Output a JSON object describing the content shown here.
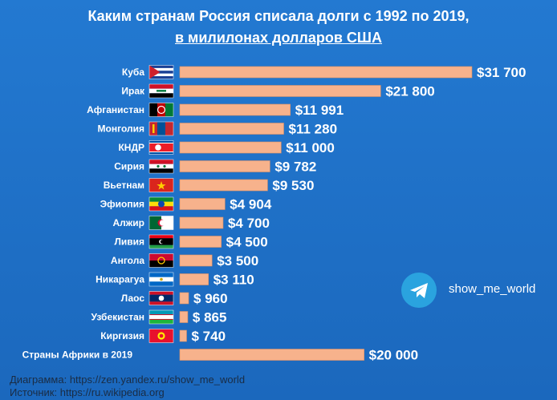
{
  "header": {
    "title_line1": "Каким странам Россия списала долги с 1992 по 2019,",
    "title_line2": "в милилонах долларов США"
  },
  "chart_data": {
    "type": "bar",
    "orientation": "horizontal",
    "categories": [
      "Куба",
      "Ирак",
      "Афганистан",
      "Монголия",
      "КНДР",
      "Сирия",
      "Вьетнам",
      "Эфиопия",
      "Алжир",
      "Ливия",
      "Ангола",
      "Никарагуа",
      "Лаос",
      "Узбекистан",
      "Киргизия",
      "Страны Африки в 2019"
    ],
    "values": [
      31700,
      21800,
      11991,
      11280,
      11000,
      9782,
      9530,
      4904,
      4700,
      4500,
      3500,
      3110,
      960,
      865,
      740,
      20000
    ],
    "value_labels": [
      "$31 700",
      "$21 800",
      "$11 991",
      "$11 280",
      "$11 000",
      "$9 782",
      "$9 530",
      "$4 904",
      "$4 700",
      "$4 500",
      "$3 500",
      "$3 110",
      "$ 960",
      "$ 865",
      "$ 740",
      "$20 000"
    ],
    "flags": [
      "cuba-flag-icon",
      "iraq-flag-icon",
      "afghanistan-flag-icon",
      "mongolia-flag-icon",
      "north-korea-flag-icon",
      "syria-flag-icon",
      "vietnam-flag-icon",
      "ethiopia-flag-icon",
      "algeria-flag-icon",
      "libya-flag-icon",
      "angola-flag-icon",
      "nicaragua-flag-icon",
      "laos-flag-icon",
      "uzbekistan-flag-icon",
      "kyrgyzstan-flag-icon",
      ""
    ],
    "grid": false,
    "bar_color": "#f7b28c"
  },
  "branding": {
    "icon": "telegram-icon",
    "channel": "show_me_world"
  },
  "footer": {
    "line1": "Диаграмма: https://zen.yandex.ru/show_me_world",
    "line2": "Источник: https://ru.wikipedia.org"
  },
  "colors": {
    "background": "#1f6fc4",
    "bar": "#f7b28c",
    "telegram": "#2aa3df"
  }
}
